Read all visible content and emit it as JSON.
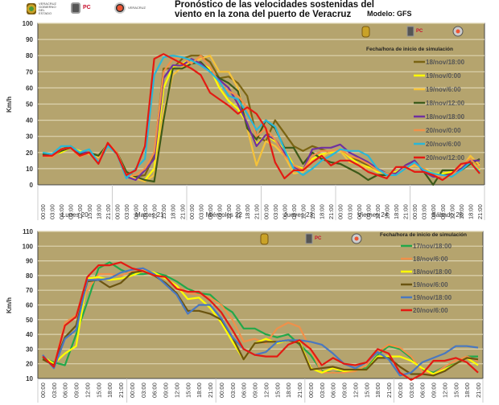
{
  "header": {
    "title_line1": "Pronóstico de las velocidades sostenidas  del",
    "title_line2": "viento en la zona del puerto de Veracruz",
    "model": "Modelo: GFS",
    "logos": [
      {
        "icon": "veracruz-shield-icon",
        "text": "VERACRUZ GOBIERNO DEL ESTADO"
      },
      {
        "icon": "proteccion-civil-icon",
        "text": "PC Secretaría de Protección Civil"
      },
      {
        "icon": "emergency-emblem-icon",
        "text": "VERACRUZ"
      }
    ]
  },
  "colors": {
    "plot_bg": "#b5a46e",
    "grid": "#ddd3b0"
  },
  "chart_data": [
    {
      "type": "line",
      "title": "",
      "ylabel": "Km/h",
      "xlabel": "",
      "ylim": [
        0,
        100
      ],
      "yticks": [
        0,
        10,
        20,
        30,
        40,
        50,
        60,
        70,
        80,
        90,
        100
      ],
      "grid": true,
      "legend_title": "Fecha/hora de inicio de simulación",
      "legend_position": "top-right",
      "hours": [
        "00:00",
        "03:00",
        "06:00",
        "09:00",
        "12:00",
        "15:00",
        "18:00",
        "21:00"
      ],
      "days": [
        "Lunes 20",
        "Martes 21",
        "Miércoles 22",
        "Jueves 23",
        "Viernes 24",
        "Sábado 25"
      ],
      "series": [
        {
          "name": "18/nov/18:00",
          "color": "#7a6412",
          "values": [
            19,
            18,
            22,
            24,
            20,
            20,
            18,
            25,
            20,
            8,
            5,
            6,
            18,
            72,
            72,
            78,
            80,
            80,
            76,
            66,
            67,
            63,
            55,
            30,
            27,
            40,
            32,
            24,
            21,
            24,
            22,
            20,
            22,
            17,
            15,
            12,
            9,
            6,
            7,
            11,
            13,
            10,
            6,
            6,
            7,
            9,
            13,
            13
          ]
        },
        {
          "name": "19/nov/0:00",
          "color": "#ffff00",
          "values": [
            20,
            19,
            20,
            23,
            21,
            19,
            17,
            24,
            19,
            7,
            4,
            3,
            10,
            60,
            73,
            75,
            78,
            75,
            72,
            60,
            52,
            47,
            38,
            25,
            31,
            27,
            22,
            12,
            10,
            16,
            19,
            20,
            22,
            17,
            13,
            11,
            8,
            7,
            8,
            11,
            13,
            10,
            7,
            7,
            8,
            11,
            16,
            9
          ]
        },
        {
          "name": "19/nov/6:00",
          "color": "#f5c23a",
          "values": [
            19,
            19,
            21,
            23,
            20,
            19,
            17,
            24,
            20,
            7,
            4,
            2,
            6,
            45,
            68,
            73,
            76,
            78,
            80,
            70,
            70,
            60,
            35,
            12,
            27,
            24,
            18,
            7,
            8,
            15,
            17,
            21,
            21,
            14,
            13,
            10,
            9,
            6,
            6,
            10,
            12,
            10,
            6,
            5,
            5,
            10,
            18,
            12
          ]
        },
        {
          "name": "18/nov/12:00",
          "color": "#3d5a1a",
          "values": [
            19,
            18,
            21,
            23,
            19,
            20,
            18,
            25,
            20,
            8,
            5,
            3,
            2,
            40,
            72,
            72,
            75,
            76,
            70,
            66,
            63,
            58,
            35,
            28,
            40,
            35,
            23,
            23,
            13,
            20,
            16,
            14,
            13,
            10,
            7,
            3,
            6,
            6,
            7,
            12,
            15,
            8,
            0,
            9,
            9,
            9,
            13,
            16
          ]
        },
        {
          "name": "18/nov/18:00",
          "color": "#7030a0",
          "values": [
            18,
            18,
            22,
            23,
            20,
            20,
            15,
            25,
            19,
            5,
            3,
            9,
            16,
            66,
            74,
            74,
            78,
            75,
            70,
            65,
            60,
            50,
            38,
            24,
            31,
            28,
            20,
            11,
            9,
            22,
            23,
            23,
            25,
            20,
            17,
            14,
            10,
            7,
            7,
            12,
            15,
            8,
            5,
            5,
            7,
            10,
            15,
            15
          ]
        },
        {
          "name": "20/nov/0:00",
          "color": "#f0904a",
          "values": [
            18,
            17,
            22,
            23,
            17,
            20,
            15,
            26,
            20,
            6,
            6,
            10,
            20,
            70,
            78,
            79,
            75,
            80,
            73,
            63,
            58,
            55,
            48,
            30,
            35,
            28,
            18,
            12,
            9,
            18,
            21,
            21,
            22,
            18,
            16,
            13,
            9,
            7,
            6,
            11,
            13,
            10,
            6,
            5,
            6,
            12,
            16,
            10
          ]
        },
        {
          "name": "20/nov/6:00",
          "color": "#2ab7d7",
          "values": [
            20,
            19,
            24,
            24,
            20,
            22,
            14,
            24,
            19,
            4,
            10,
            16,
            68,
            79,
            80,
            79,
            77,
            74,
            70,
            64,
            55,
            53,
            44,
            34,
            40,
            36,
            22,
            10,
            6,
            10,
            15,
            18,
            22,
            21,
            21,
            18,
            10,
            6,
            6,
            10,
            14,
            9,
            7,
            6,
            5,
            9,
            14,
            8
          ]
        },
        {
          "name": "20/nov/12:00",
          "color": "#e31b13",
          "values": [
            18,
            18,
            22,
            23,
            18,
            20,
            13,
            26,
            19,
            6,
            9,
            24,
            78,
            81,
            78,
            75,
            72,
            68,
            57,
            53,
            49,
            44,
            48,
            44,
            35,
            14,
            4,
            9,
            9,
            14,
            18,
            12,
            15,
            15,
            12,
            8,
            6,
            4,
            11,
            11,
            8,
            8,
            6,
            3,
            7,
            13,
            14,
            7
          ]
        }
      ]
    },
    {
      "type": "line",
      "title": "",
      "ylabel": "Km/h",
      "xlabel": "",
      "ylim": [
        10,
        110
      ],
      "yticks": [
        10,
        20,
        30,
        40,
        50,
        60,
        70,
        80,
        90,
        100,
        110
      ],
      "grid": true,
      "legend_title": "Fecha/hora de inicio de simulación",
      "legend_position": "top-right",
      "hours": [
        "00:00",
        "03:00",
        "06:00",
        "09:00",
        "12:00",
        "15:00",
        "18:00",
        "21:00"
      ],
      "days": [
        "",
        "",
        "",
        "",
        ""
      ],
      "series": [
        {
          "name": "17/nov/18:00",
          "color": "#22a84a",
          "values": [
            24,
            21,
            19,
            40,
            62,
            85,
            89,
            84,
            81,
            81,
            82,
            80,
            76,
            71,
            68,
            67,
            60,
            55,
            44,
            44,
            40,
            38,
            40,
            33,
            26,
            15,
            14,
            15,
            16,
            17,
            26,
            32,
            30,
            24,
            16,
            14,
            18,
            20,
            25,
            25
          ]
        },
        {
          "name": "18/nov/6:00",
          "color": "#f0904a",
          "values": [
            26,
            18,
            48,
            53,
            70,
            81,
            81,
            80,
            83,
            84,
            81,
            78,
            73,
            68,
            67,
            65,
            60,
            50,
            35,
            37,
            34,
            44,
            48,
            45,
            30,
            14,
            14,
            14,
            15,
            19,
            28,
            33,
            31,
            25,
            15,
            13,
            18,
            22,
            25,
            22
          ]
        },
        {
          "name": "18/nov/18:00",
          "color": "#ffff00",
          "values": [
            25,
            20,
            27,
            32,
            78,
            79,
            77,
            78,
            80,
            83,
            82,
            78,
            73,
            64,
            65,
            58,
            48,
            35,
            23,
            34,
            37,
            34,
            36,
            35,
            17,
            14,
            17,
            15,
            16,
            16,
            25,
            25,
            25,
            22,
            17,
            13,
            16,
            20,
            24,
            19
          ]
        },
        {
          "name": "19/nov/6:00",
          "color": "#6b5410",
          "values": [
            23,
            19,
            38,
            46,
            76,
            77,
            72,
            75,
            82,
            83,
            80,
            75,
            68,
            56,
            56,
            54,
            50,
            38,
            23,
            34,
            35,
            35,
            36,
            34,
            16,
            17,
            18,
            16,
            16,
            16,
            24,
            24,
            18,
            13,
            13,
            12,
            15,
            20,
            24,
            23
          ]
        },
        {
          "name": "19/nov/18:00",
          "color": "#4a78c0",
          "values": [
            26,
            17,
            37,
            43,
            77,
            77,
            78,
            82,
            84,
            85,
            81,
            74,
            67,
            54,
            60,
            60,
            51,
            38,
            30,
            26,
            28,
            35,
            36,
            36,
            35,
            33,
            27,
            20,
            17,
            21,
            28,
            23,
            12,
            14,
            21,
            24,
            27,
            32,
            32,
            31
          ]
        },
        {
          "name": "20/nov/6:00",
          "color": "#e31b13",
          "values": [
            25,
            18,
            46,
            52,
            79,
            87,
            87,
            89,
            85,
            83,
            80,
            79,
            71,
            69,
            69,
            63,
            55,
            43,
            30,
            26,
            25,
            25,
            33,
            36,
            30,
            19,
            24,
            20,
            19,
            21,
            30,
            27,
            14,
            9,
            13,
            22,
            22,
            24,
            21,
            14
          ]
        }
      ]
    }
  ]
}
